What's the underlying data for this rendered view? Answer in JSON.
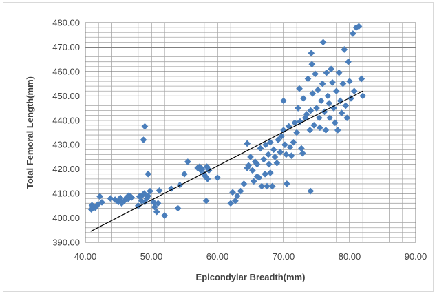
{
  "chart_data": {
    "type": "scatter",
    "title": "",
    "xlabel": "Epicondylar  Breadth(mm)",
    "ylabel": "Total Femoral Length(mm)",
    "xlim": [
      40,
      90
    ],
    "ylim": [
      390,
      480
    ],
    "x_ticks": [
      "40.00",
      "50.00",
      "60.00",
      "70.00",
      "80.00",
      "90.00"
    ],
    "y_ticks": [
      "390.00",
      "400.00",
      "410.00",
      "420.00",
      "430.00",
      "440.00",
      "450.00",
      "460.00",
      "470.00",
      "480.00"
    ],
    "grid": true,
    "marker_color": "#4a7ebb",
    "trendline": {
      "x": [
        40.8,
        82
      ],
      "y": [
        394.5,
        452
      ],
      "color": "#000000"
    },
    "points": [
      [
        40.9,
        403.5
      ],
      [
        41.0,
        405.2
      ],
      [
        41.5,
        404.2
      ],
      [
        41.9,
        405.5
      ],
      [
        42.2,
        408.8
      ],
      [
        42.5,
        406.4
      ],
      [
        43.8,
        408.0
      ],
      [
        44.5,
        407.5
      ],
      [
        45.0,
        406.5
      ],
      [
        45.3,
        408.2
      ],
      [
        45.5,
        406.0
      ],
      [
        45.9,
        407.0
      ],
      [
        46.3,
        408.5
      ],
      [
        46.5,
        407.8
      ],
      [
        46.6,
        409.2
      ],
      [
        47.0,
        408.4
      ],
      [
        48.0,
        405.0
      ],
      [
        48.2,
        408.8
      ],
      [
        48.5,
        407.0
      ],
      [
        48.7,
        409.5
      ],
      [
        48.9,
        410.0
      ],
      [
        49.0,
        406.5
      ],
      [
        49.3,
        408.0
      ],
      [
        49.5,
        409.0
      ],
      [
        49.8,
        411.0
      ],
      [
        49.0,
        437.5
      ],
      [
        48.8,
        432.0
      ],
      [
        49.5,
        418.0
      ],
      [
        50.3,
        406.5
      ],
      [
        50.5,
        404.5
      ],
      [
        50.8,
        402.5
      ],
      [
        51.0,
        406.0
      ],
      [
        51.2,
        411.2
      ],
      [
        52.0,
        401.0
      ],
      [
        53.0,
        412.0
      ],
      [
        54.0,
        404.0
      ],
      [
        54.3,
        413.5
      ],
      [
        55.0,
        418.0
      ],
      [
        55.5,
        423.0
      ],
      [
        57.0,
        420.5
      ],
      [
        57.3,
        421.0
      ],
      [
        57.5,
        419.5
      ],
      [
        57.7,
        420.0
      ],
      [
        58.0,
        418.0
      ],
      [
        58.2,
        417.0
      ],
      [
        58.4,
        421.0
      ],
      [
        58.6,
        420.0
      ],
      [
        58.5,
        416.0
      ],
      [
        58.3,
        407.0
      ],
      [
        58.7,
        419.5
      ],
      [
        60.0,
        416.5
      ],
      [
        62.0,
        406.0
      ],
      [
        62.3,
        410.5
      ],
      [
        62.7,
        407.0
      ],
      [
        63.0,
        409.0
      ],
      [
        63.5,
        411.0
      ],
      [
        64.0,
        414.0
      ],
      [
        64.5,
        420.5
      ],
      [
        64.7,
        421.5
      ],
      [
        64.5,
        430.5
      ],
      [
        65.0,
        425.0
      ],
      [
        65.3,
        419.5
      ],
      [
        65.5,
        415.0
      ],
      [
        65.7,
        423.0
      ],
      [
        66.0,
        422.0
      ],
      [
        66.0,
        417.0
      ],
      [
        66.3,
        416.5
      ],
      [
        66.5,
        428.5
      ],
      [
        66.7,
        413.0
      ],
      [
        67.0,
        424.0
      ],
      [
        67.2,
        418.0
      ],
      [
        67.3,
        430.0
      ],
      [
        67.5,
        413.0
      ],
      [
        67.7,
        426.0
      ],
      [
        67.8,
        422.0
      ],
      [
        68.0,
        431.0
      ],
      [
        68.0,
        418.5
      ],
      [
        68.3,
        413.0
      ],
      [
        68.5,
        428.0
      ],
      [
        68.7,
        425.0
      ],
      [
        69.0,
        422.5
      ],
      [
        69.2,
        432.0
      ],
      [
        69.5,
        427.0
      ],
      [
        69.7,
        433.5
      ],
      [
        70.0,
        448.0
      ],
      [
        70.0,
        436.0
      ],
      [
        70.2,
        430.0
      ],
      [
        70.4,
        426.0
      ],
      [
        70.5,
        414.0
      ],
      [
        70.8,
        437.5
      ],
      [
        71.0,
        429.0
      ],
      [
        71.2,
        425.5
      ],
      [
        71.5,
        431.0
      ],
      [
        71.7,
        439.0
      ],
      [
        72.0,
        435.0
      ],
      [
        72.2,
        445.0
      ],
      [
        72.4,
        453.0
      ],
      [
        72.5,
        439.5
      ],
      [
        72.7,
        428.5
      ],
      [
        72.9,
        426.5
      ],
      [
        73.0,
        449.0
      ],
      [
        73.3,
        441.0
      ],
      [
        73.5,
        442.5
      ],
      [
        73.7,
        457.0
      ],
      [
        74.0,
        436.0
      ],
      [
        74.1,
        444.0
      ],
      [
        74.2,
        467.5
      ],
      [
        74.3,
        463.0
      ],
      [
        74.4,
        451.0
      ],
      [
        74.1,
        411.0
      ],
      [
        74.6,
        438.0
      ],
      [
        74.8,
        459.0
      ],
      [
        75.0,
        445.0
      ],
      [
        75.2,
        452.5
      ],
      [
        75.4,
        441.0
      ],
      [
        75.5,
        437.0
      ],
      [
        75.7,
        448.0
      ],
      [
        75.9,
        455.0
      ],
      [
        76.0,
        472.0
      ],
      [
        76.2,
        443.5
      ],
      [
        76.4,
        436.0
      ],
      [
        76.5,
        459.5
      ],
      [
        76.7,
        450.0
      ],
      [
        76.9,
        447.0
      ],
      [
        77.0,
        441.0
      ],
      [
        77.2,
        461.0
      ],
      [
        77.4,
        455.5
      ],
      [
        77.6,
        445.0
      ],
      [
        77.8,
        439.0
      ],
      [
        78.0,
        452.0
      ],
      [
        78.2,
        436.0
      ],
      [
        78.4,
        459.5
      ],
      [
        78.6,
        448.0
      ],
      [
        78.8,
        443.0
      ],
      [
        79.0,
        455.0
      ],
      [
        79.2,
        469.0
      ],
      [
        79.4,
        446.0
      ],
      [
        79.6,
        441.0
      ],
      [
        79.8,
        464.0
      ],
      [
        80.0,
        456.0
      ],
      [
        80.2,
        449.0
      ],
      [
        80.5,
        475.5
      ],
      [
        80.7,
        452.0
      ],
      [
        81.0,
        478.0
      ],
      [
        81.4,
        478.5
      ],
      [
        81.8,
        457.0
      ],
      [
        82.0,
        450.0
      ]
    ]
  }
}
